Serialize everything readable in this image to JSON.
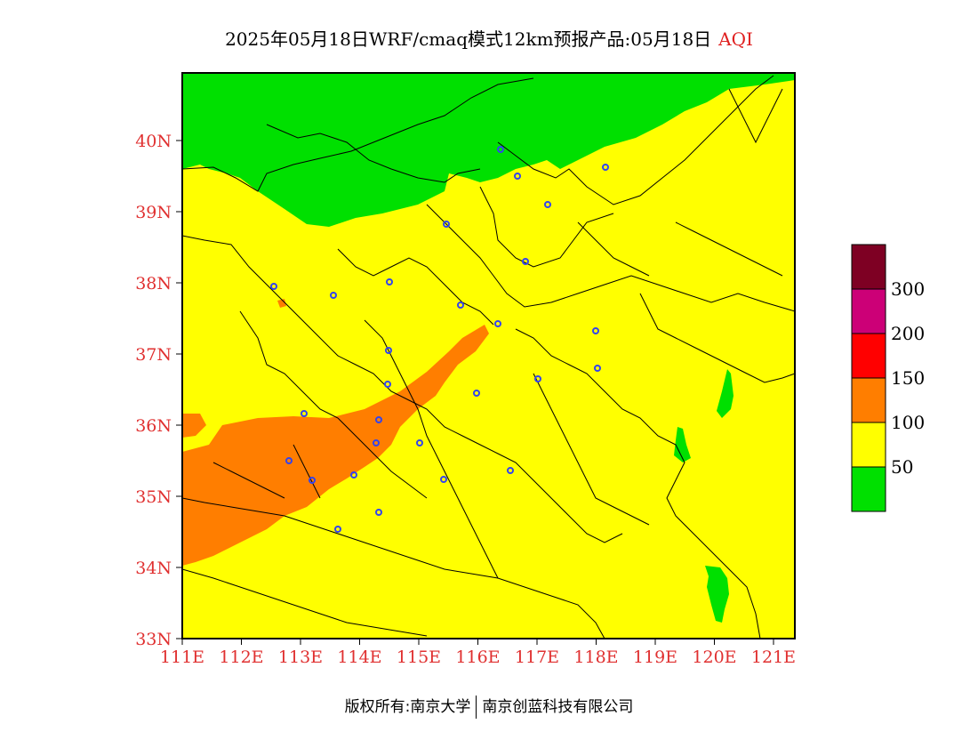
{
  "title": {
    "main": "2025年05月18日WRF/cmaq模式12km预报产品:05月18日",
    "variable": "AQI"
  },
  "map": {
    "lat_labels": [
      "33N",
      "34N",
      "35N",
      "36N",
      "37N",
      "38N",
      "39N",
      "40N"
    ],
    "lon_labels": [
      "111E",
      "112E",
      "113E",
      "114E",
      "115E",
      "116E",
      "117E",
      "118E",
      "119E",
      "120E",
      "121E"
    ],
    "colors": {
      "good": "#00e000",
      "moderate": "#ffff00",
      "usg": "#ff7e00",
      "unhealthy": "#ff0000",
      "very_unhealthy": "#cc0077",
      "hazardous": "#7e0023",
      "city_marker": "#3344ee",
      "label": "#e03030"
    }
  },
  "legend": {
    "labels": [
      "50",
      "100",
      "150",
      "200",
      "300"
    ],
    "colors": [
      "#00e000",
      "#ffff00",
      "#ff7e00",
      "#ff0000",
      "#cc0077",
      "#7e0023"
    ]
  },
  "footer": {
    "copyright": "版权所有:南京大学",
    "company": "南京创蓝科技有限公司"
  }
}
